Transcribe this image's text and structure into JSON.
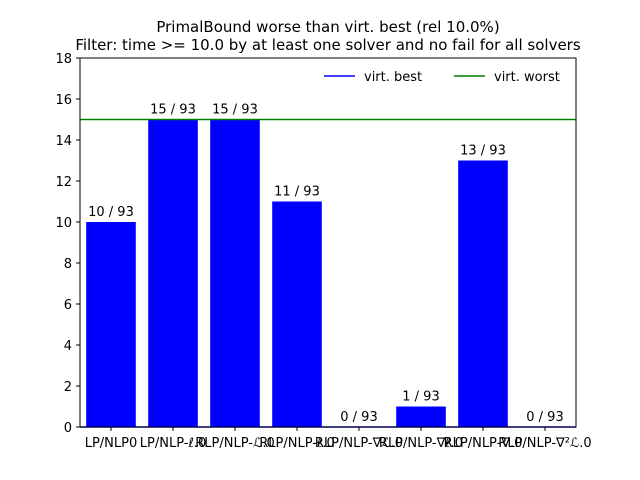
{
  "chart_data": {
    "type": "bar",
    "title": "PrimalBound worse than virt. best (rel 10.0%)",
    "subtitle": "Filter: time >= 10.0 by at least one solver and no fail for all solvers",
    "xlabel": "",
    "ylabel": "",
    "ylim": [
      0,
      18
    ],
    "yticks": [
      0,
      2,
      4,
      6,
      8,
      10,
      12,
      14,
      16,
      18
    ],
    "grid": false,
    "legend_position": "top-right",
    "categories": [
      "LP/NLP0",
      "LP/NLP-ℓ.0",
      "RLP/NLP-ℒ.0",
      "RLP/NLP-ℓ.0",
      "RLP/NLP-∇ℒ.0",
      "RLP/NLP-∇ℓ.0",
      "RLP/NLP-∇.0",
      "RLP/NLP-∇²ℒ.0"
    ],
    "series": [
      {
        "name": "",
        "color": "#0000ff",
        "values": [
          10,
          15,
          15,
          11,
          0,
          1,
          13,
          0
        ],
        "labels": [
          "10 / 93",
          "15 / 93",
          "15 / 93",
          "11 / 93",
          "0 / 93",
          "1 / 93",
          "13 / 93",
          "0 / 93"
        ]
      }
    ],
    "reference_lines": [
      {
        "name": "virt. best",
        "value": 0,
        "color": "#0000ff"
      },
      {
        "name": "virt. worst",
        "value": 15,
        "color": "#008000"
      }
    ]
  }
}
